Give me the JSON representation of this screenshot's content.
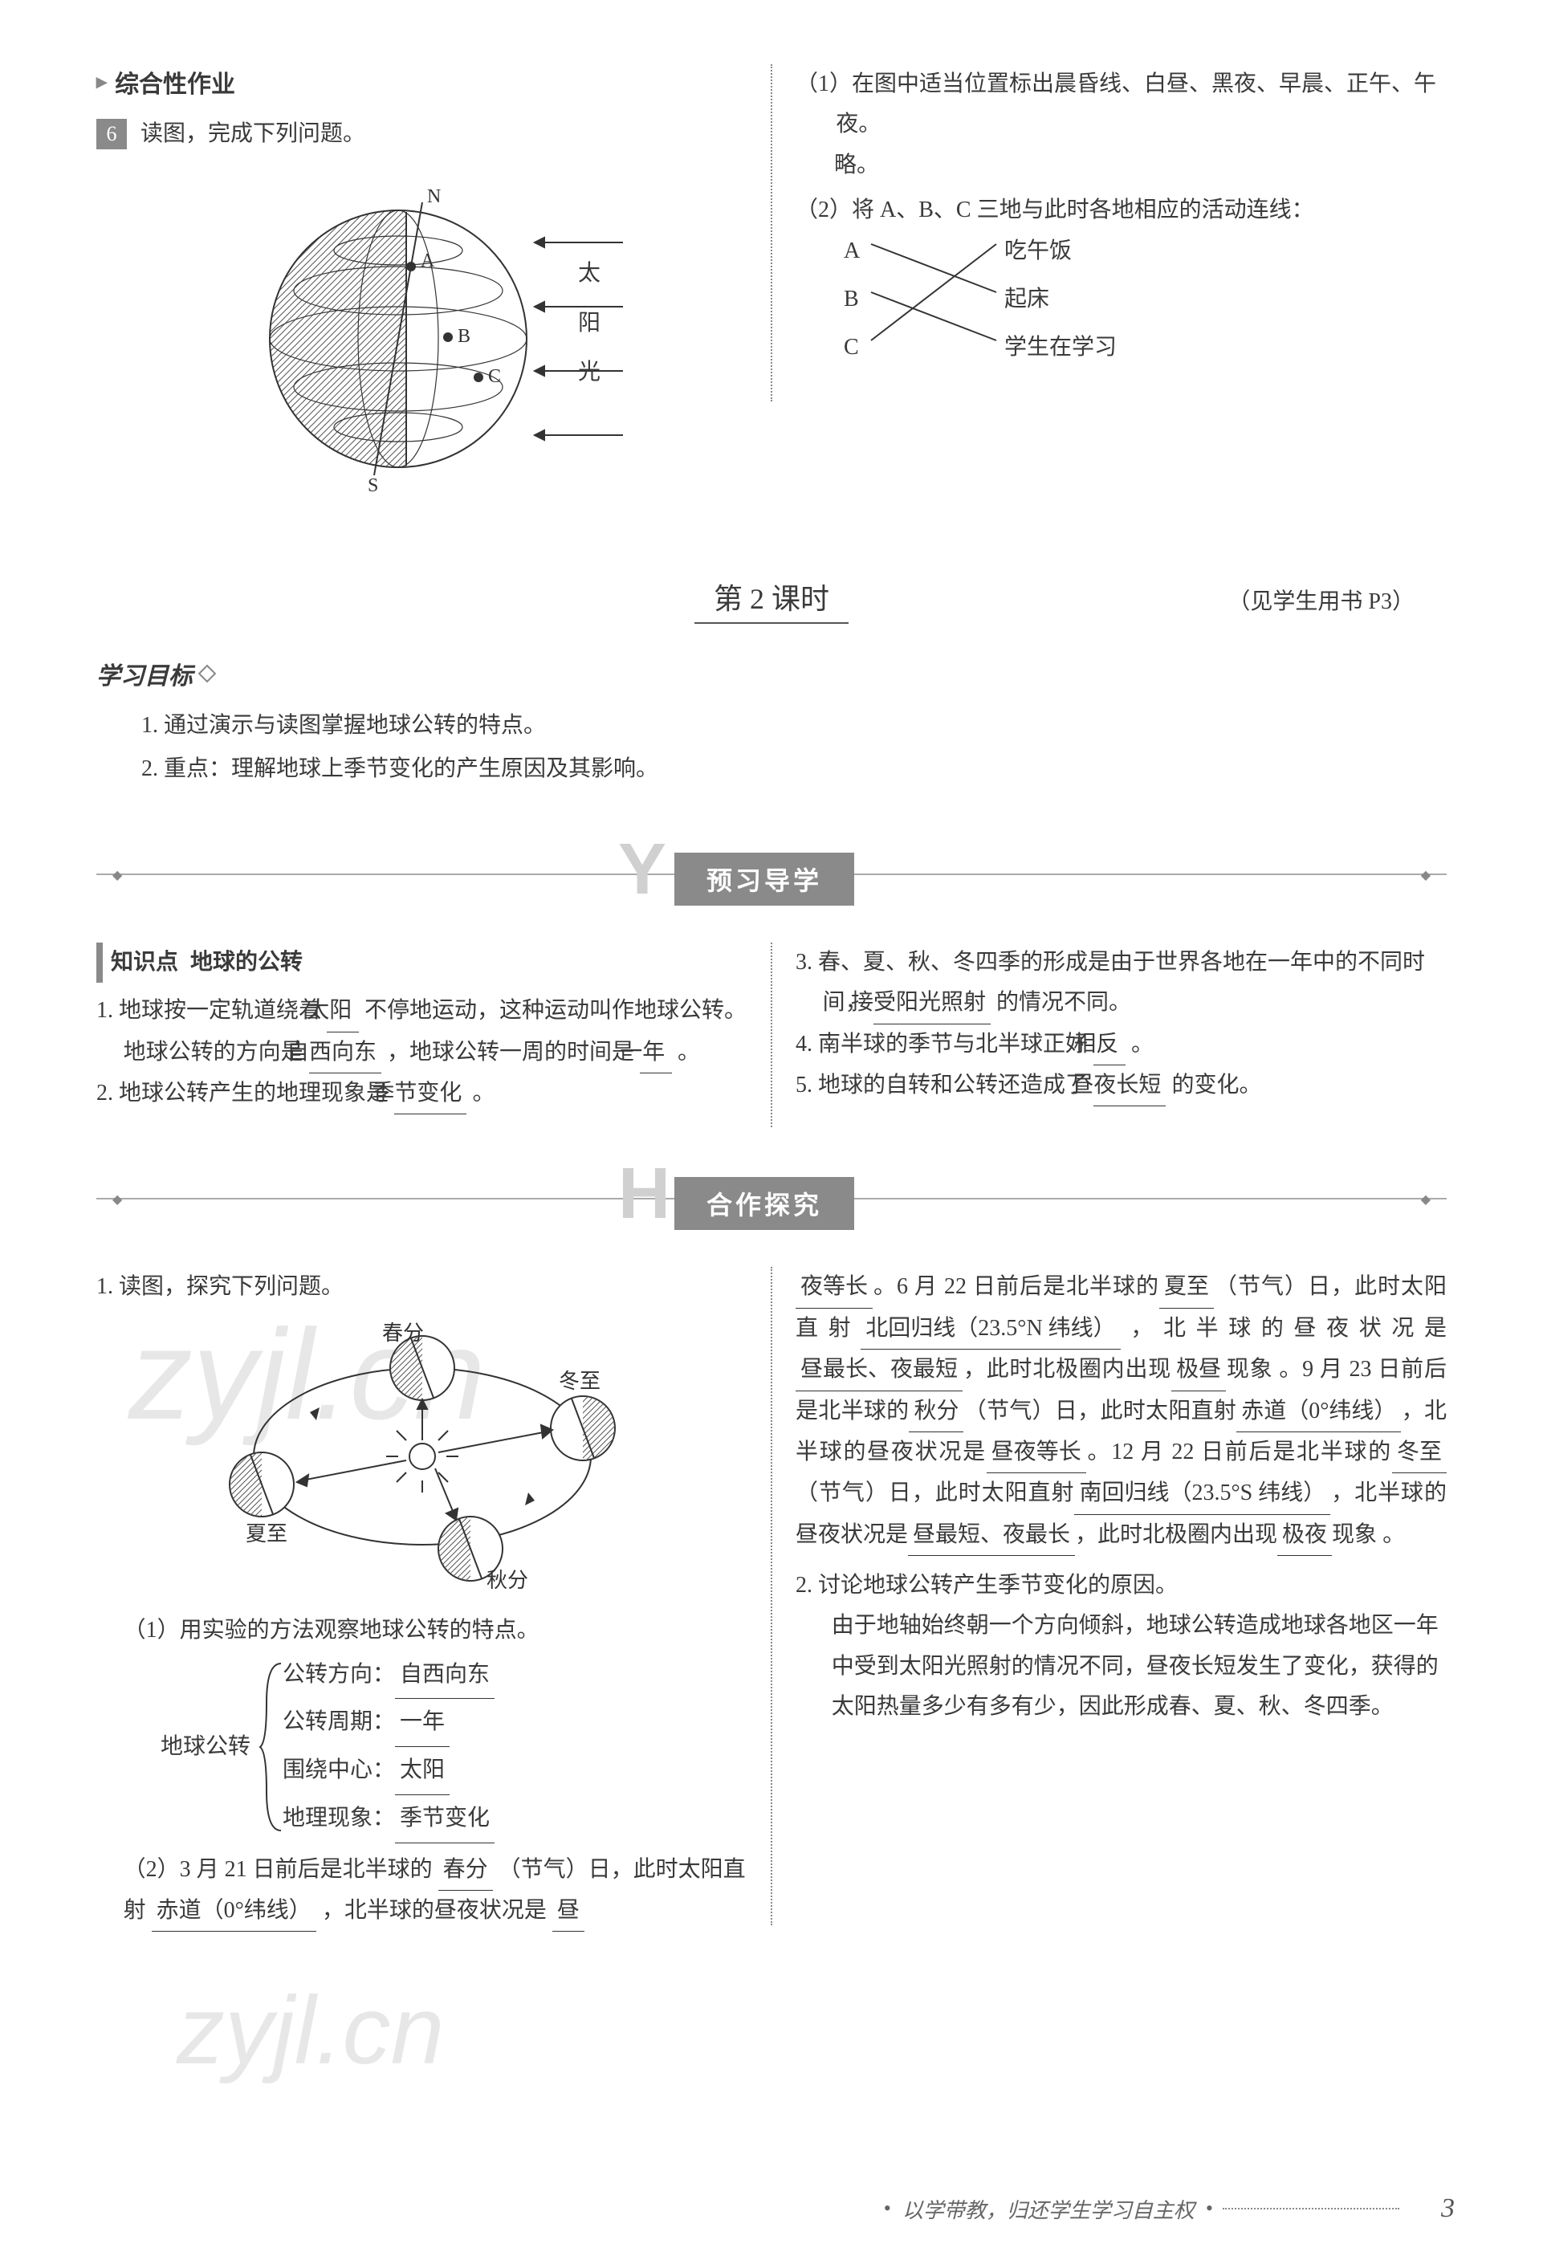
{
  "section_header": "综合性作业",
  "q6": {
    "num": "6",
    "stem": "读图，完成下列问题。",
    "globe_labels": {
      "N": "N",
      "S": "S",
      "A": "A",
      "B": "B",
      "C": "C"
    },
    "sun_label_chars": [
      "太",
      "阳",
      "光"
    ],
    "sub1": "（1）在图中适当位置标出晨昏线、白昼、黑夜、早晨、正午、午夜。",
    "sub1_ans": "略。",
    "sub2": "（2）将 A、B、C 三地与此时各地相应的活动连线：",
    "match_left": [
      "A",
      "B",
      "C"
    ],
    "match_right": [
      "吃午饭",
      "起床",
      "学生在学习"
    ]
  },
  "lesson": {
    "title": "第 2 课时",
    "ref": "（见学生用书 P3）"
  },
  "goals": {
    "label": "学习目标",
    "items": [
      "1. 通过演示与读图掌握地球公转的特点。",
      "2. 重点：理解地球上季节变化的产生原因及其影响。"
    ]
  },
  "banner1": {
    "letter": "Y",
    "text": "预习导学"
  },
  "kp": {
    "label": "知识点",
    "title": "地球的公转",
    "items_left": [
      {
        "pre": "1. 地球按一定轨道绕着",
        "a1": "太阳",
        "mid1": "不停地运动，这种运动叫作地球公转。地球公转的方向是",
        "a2": "自西向东",
        "mid2": "，地球公转一周的时间是",
        "a3": "一年",
        "post": "。"
      },
      {
        "pre": "2. 地球公转产生的地理现象是",
        "a1": "季节变化",
        "post": "。"
      }
    ],
    "items_right": [
      {
        "pre": "3. 春、夏、秋、冬四季的形成是由于世界各地在一年中的不同时间，",
        "a1": "接受阳光照射",
        "post": "的情况不同。"
      },
      {
        "pre": "4. 南半球的季节与北半球正好",
        "a1": "相反",
        "post": "。"
      },
      {
        "pre": "5. 地球的自转和公转还造成了",
        "a1": "昼夜长短",
        "post": "的变化。"
      }
    ]
  },
  "banner2": {
    "letter": "H",
    "text": "合作探究"
  },
  "explore": {
    "q1": "1. 读图，探究下列问题。",
    "orbit_labels": {
      "chunfen": "春分",
      "xiazhi": "夏至",
      "qiufen": "秋分",
      "dongzhi": "冬至"
    },
    "sub1": "（1）用实验的方法观察地球公转的特点。",
    "tree_root": "地球公转",
    "tree": [
      {
        "k": "公转方向：",
        "v": "自西向东"
      },
      {
        "k": "公转周期：",
        "v": "一年"
      },
      {
        "k": "围绕中心：",
        "v": "太阳"
      },
      {
        "k": "地理现象：",
        "v": "季节变化"
      }
    ],
    "sub2_pre": "（2）3 月 21 日前后是北半球的",
    "sub2_a1": "春分",
    "sub2_mid1": "（节气）日，此时太阳直射",
    "sub2_a2": "赤道（0°纬线）",
    "sub2_mid2": "，北半球的昼夜状况是",
    "sub2_a3": "昼",
    "right_parts": [
      {
        "a": "夜等长",
        "t": "。6 月 22 日前后是北半球的"
      },
      {
        "a": "夏至",
        "t": "（节气）日，此时太阳直射"
      },
      {
        "a": "北回归线（23.5°N 纬线）",
        "t": "，北半球的昼夜状况是"
      },
      {
        "a": "昼最长、夜最短",
        "t": "，此时北极圈内出现"
      },
      {
        "a": "极昼",
        "t": "现象 。9 月 23 日前后是北半球的"
      },
      {
        "a": "秋分",
        "t": "（节气）日，此时太阳直射"
      },
      {
        "a": "赤道（0°纬线）",
        "t": "，北半球的昼夜状况是"
      },
      {
        "a": "昼夜等长",
        "t": "。12 月 22 日前后是北半球的"
      },
      {
        "a": "冬至",
        "t": "（节气）日，此时太阳直射"
      },
      {
        "a": "南回归线（23.5°S 纬线）",
        "t": "，北半球的昼夜状况是"
      },
      {
        "a": "昼最短、夜最长",
        "t": "，此时北极圈内出现"
      },
      {
        "a": "极夜",
        "t": "现象 。"
      }
    ],
    "q2": "2. 讨论地球公转产生季节变化的原因。",
    "q2_ans": "由于地轴始终朝一个方向倾斜，地球公转造成地球各地区一年中受到太阳光照射的情况不同，昼夜长短发生了变化，获得的太阳热量多少有多有少，因此形成春、夏、秋、冬四季。"
  },
  "footer": {
    "motto": "以学带教，归还学生学习自主权",
    "page": "3"
  },
  "watermarks": {
    "w1": "zyjl.cn",
    "w2": "zyjl.cn"
  },
  "colors": {
    "text": "#3a3a3a",
    "gray_box": "#8a8a8a",
    "light_letter": "#d0d0d0",
    "line": "#aaaaaa"
  }
}
